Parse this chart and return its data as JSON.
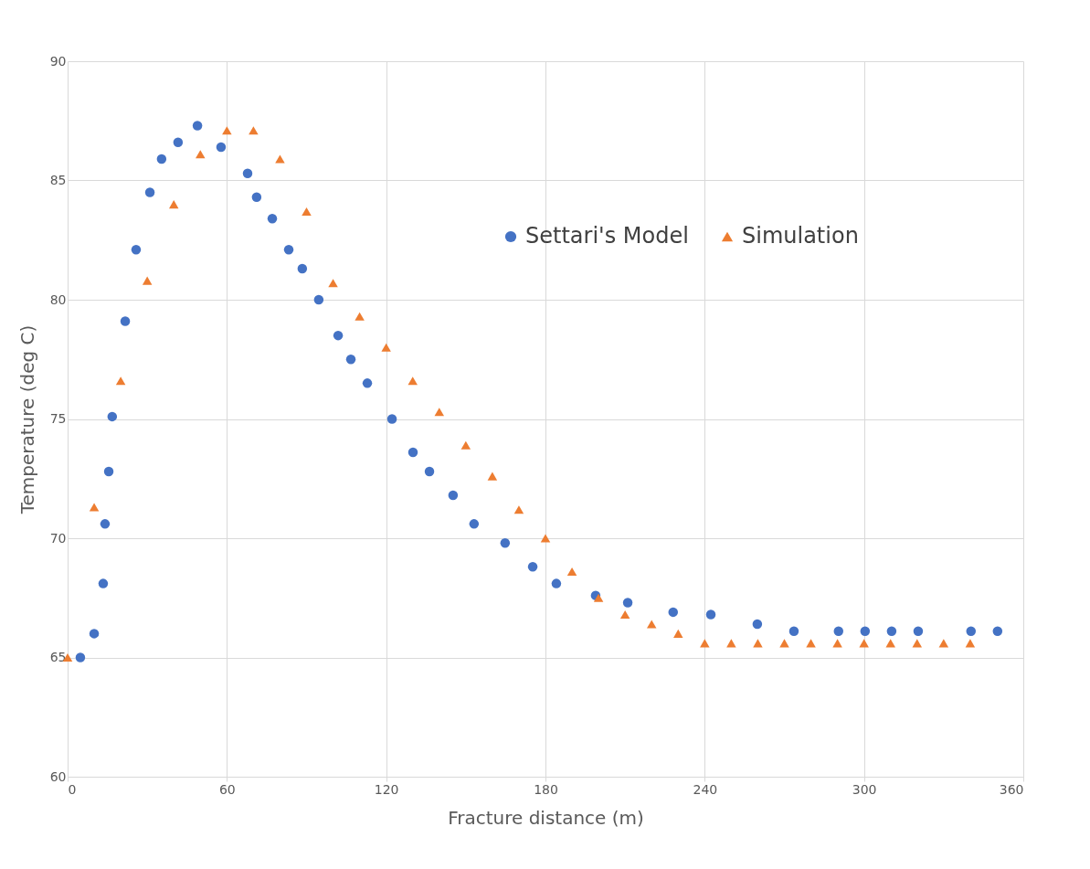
{
  "chart_data": {
    "type": "scatter",
    "xlabel": "Fracture distance (m)",
    "ylabel": "Temperature  (deg C)",
    "xlim": [
      0,
      360
    ],
    "xticks": [
      0,
      60,
      120,
      180,
      240,
      300,
      360
    ],
    "ylim": [
      60,
      90
    ],
    "yticks": [
      60,
      65,
      70,
      75,
      80,
      85,
      90
    ],
    "grid": true,
    "legend": "top right",
    "series": [
      {
        "name": "Settari's Model",
        "color": "#4472c4",
        "marker": "circle",
        "x": [
          4.8,
          10,
          13.4,
          14.1,
          15.5,
          16.8,
          21.7,
          25.8,
          31,
          35.4,
          41.6,
          48.9,
          57.8,
          67.8,
          71.2,
          77.1,
          83.3,
          88.4,
          94.6,
          101.9,
          106.7,
          112.9,
          122.2,
          130.1,
          136.3,
          145.2,
          153.1,
          164.8,
          175.2,
          184.1,
          198.9,
          211,
          228.1,
          242.3,
          259.8,
          273.6,
          290.4,
          300.4,
          310.4,
          320.4,
          340.3,
          350.3
        ],
        "values": [
          65.0,
          66.0,
          68.1,
          70.6,
          72.8,
          75.1,
          79.1,
          82.1,
          84.5,
          85.9,
          86.6,
          87.3,
          86.4,
          85.3,
          84.3,
          83.4,
          82.1,
          81.3,
          80.0,
          78.5,
          77.5,
          76.5,
          75.0,
          73.6,
          72.8,
          71.8,
          70.6,
          69.8,
          68.8,
          68.1,
          67.6,
          67.3,
          66.9,
          66.8,
          66.4,
          66.1,
          66.1,
          66.1,
          66.1,
          66.1,
          66.1,
          66.1
        ]
      },
      {
        "name": "Simulation",
        "color": "#ed7d31",
        "marker": "triangle",
        "x": [
          0,
          10,
          20,
          30,
          40,
          50,
          60,
          70,
          80,
          90,
          100,
          110,
          120,
          130,
          140,
          150,
          160,
          170,
          180,
          190,
          200,
          210,
          220,
          230,
          240,
          250,
          260,
          270,
          280,
          290,
          300,
          310,
          320,
          330,
          340
        ],
        "values": [
          65.0,
          71.3,
          76.6,
          80.8,
          84.0,
          86.1,
          87.1,
          87.1,
          85.9,
          83.7,
          80.7,
          79.3,
          78.0,
          76.6,
          75.3,
          73.9,
          72.6,
          71.2,
          70.0,
          68.6,
          67.5,
          66.8,
          66.4,
          66.0,
          65.6,
          65.6,
          65.6,
          65.6,
          65.6,
          65.6,
          65.6,
          65.6,
          65.6,
          65.6,
          65.6
        ]
      }
    ]
  }
}
